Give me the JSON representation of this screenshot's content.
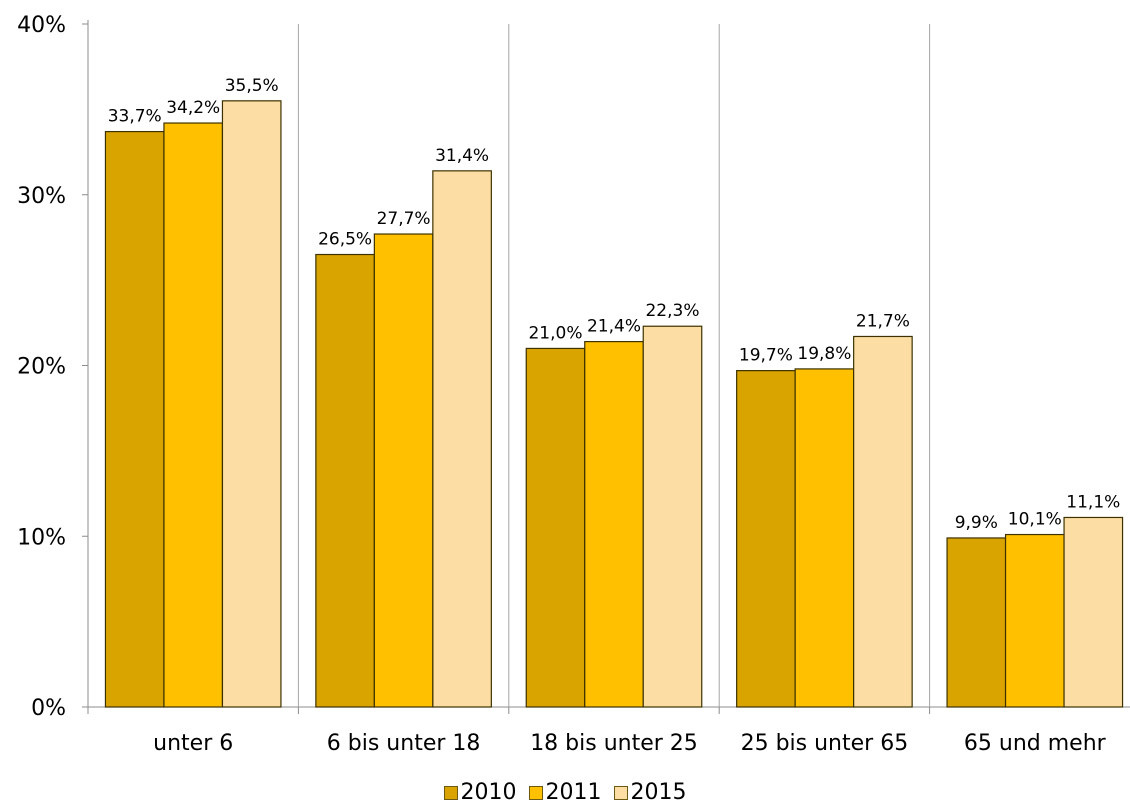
{
  "chart_data": {
    "type": "bar",
    "categories": [
      "unter 6",
      "6 bis unter 18",
      "18 bis unter 25",
      "25 bis unter 65",
      "65 und mehr"
    ],
    "series": [
      {
        "name": "2010",
        "color": "#D9A300",
        "values": [
          33.7,
          26.5,
          21.0,
          19.7,
          9.9
        ],
        "labels": [
          "33,7%",
          "26,5%",
          "21,0%",
          "19,7%",
          "9,9%"
        ]
      },
      {
        "name": "2011",
        "color": "#FFC000",
        "values": [
          34.2,
          27.7,
          21.4,
          19.8,
          10.1
        ],
        "labels": [
          "34,2%",
          "27,7%",
          "21,4%",
          "19,8%",
          "10,1%"
        ]
      },
      {
        "name": "2015",
        "color": "#FCDDA4",
        "values": [
          35.5,
          31.4,
          22.3,
          21.7,
          11.1
        ],
        "labels": [
          "35,5%",
          "31,4%",
          "22,3%",
          "21,7%",
          "11,1%"
        ]
      }
    ],
    "ylim": [
      0,
      40
    ],
    "yticks": [
      {
        "value": 0,
        "label": "0%"
      },
      {
        "value": 10,
        "label": "10%"
      },
      {
        "value": 20,
        "label": "20%"
      },
      {
        "value": 30,
        "label": "30%"
      },
      {
        "value": 40,
        "label": "40%"
      }
    ],
    "grid": "vertical separators between categories",
    "legend_position": "bottom"
  }
}
